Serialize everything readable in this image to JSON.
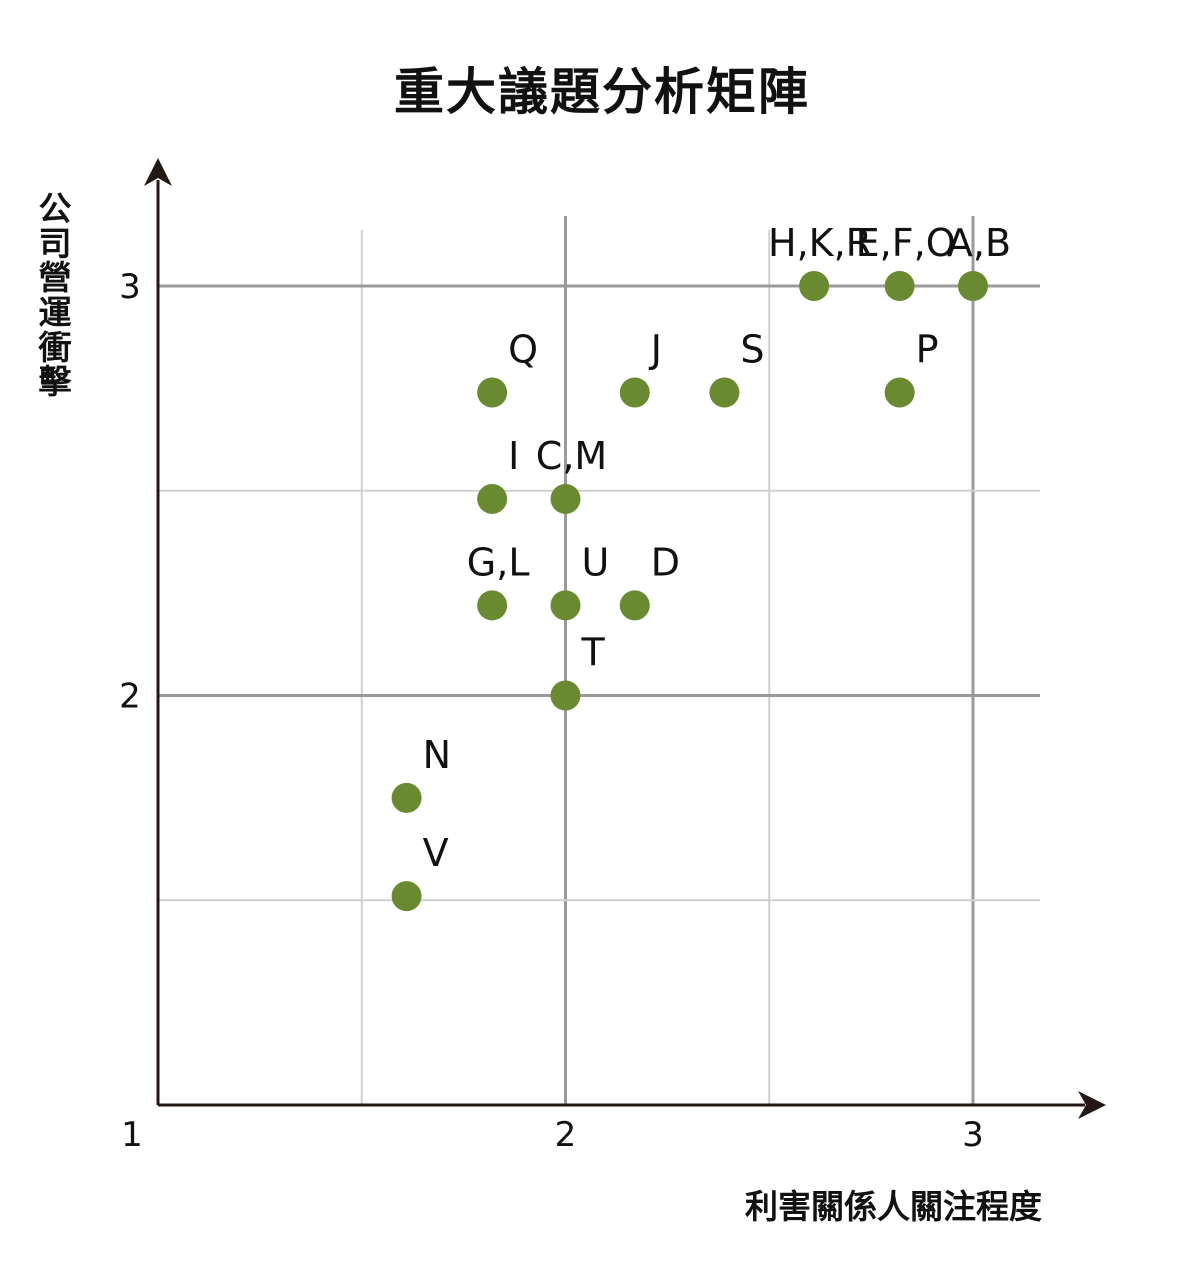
{
  "chart_data": {
    "type": "scatter",
    "title": "重大議題分析矩陣",
    "xlabel": "利害關係人關注程度",
    "ylabel": "公司營運衝擊",
    "xlim": [
      1,
      3
    ],
    "ylim": [
      1,
      3
    ],
    "x_ticks": [
      "1",
      "2",
      "3"
    ],
    "y_ticks": [
      "2",
      "3"
    ],
    "grid": true,
    "point_color": "#6a8a32",
    "points": [
      {
        "label": "H,K,R",
        "x": 2.61,
        "y": 3.0
      },
      {
        "label": "E,F,O",
        "x": 2.82,
        "y": 3.0
      },
      {
        "label": "A,B",
        "x": 3.0,
        "y": 3.0
      },
      {
        "label": "Q",
        "x": 1.82,
        "y": 2.74
      },
      {
        "label": "J",
        "x": 2.17,
        "y": 2.74
      },
      {
        "label": "S",
        "x": 2.39,
        "y": 2.74
      },
      {
        "label": "P",
        "x": 2.82,
        "y": 2.74
      },
      {
        "label": "I",
        "x": 1.82,
        "y": 2.48
      },
      {
        "label": "C,M",
        "x": 2.0,
        "y": 2.48
      },
      {
        "label": "G,L",
        "x": 1.82,
        "y": 2.22
      },
      {
        "label": "U",
        "x": 2.0,
        "y": 2.22
      },
      {
        "label": "D",
        "x": 2.17,
        "y": 2.22
      },
      {
        "label": "T",
        "x": 2.0,
        "y": 2.0
      },
      {
        "label": "N",
        "x": 1.61,
        "y": 1.75
      },
      {
        "label": "V",
        "x": 1.61,
        "y": 1.51
      }
    ]
  }
}
